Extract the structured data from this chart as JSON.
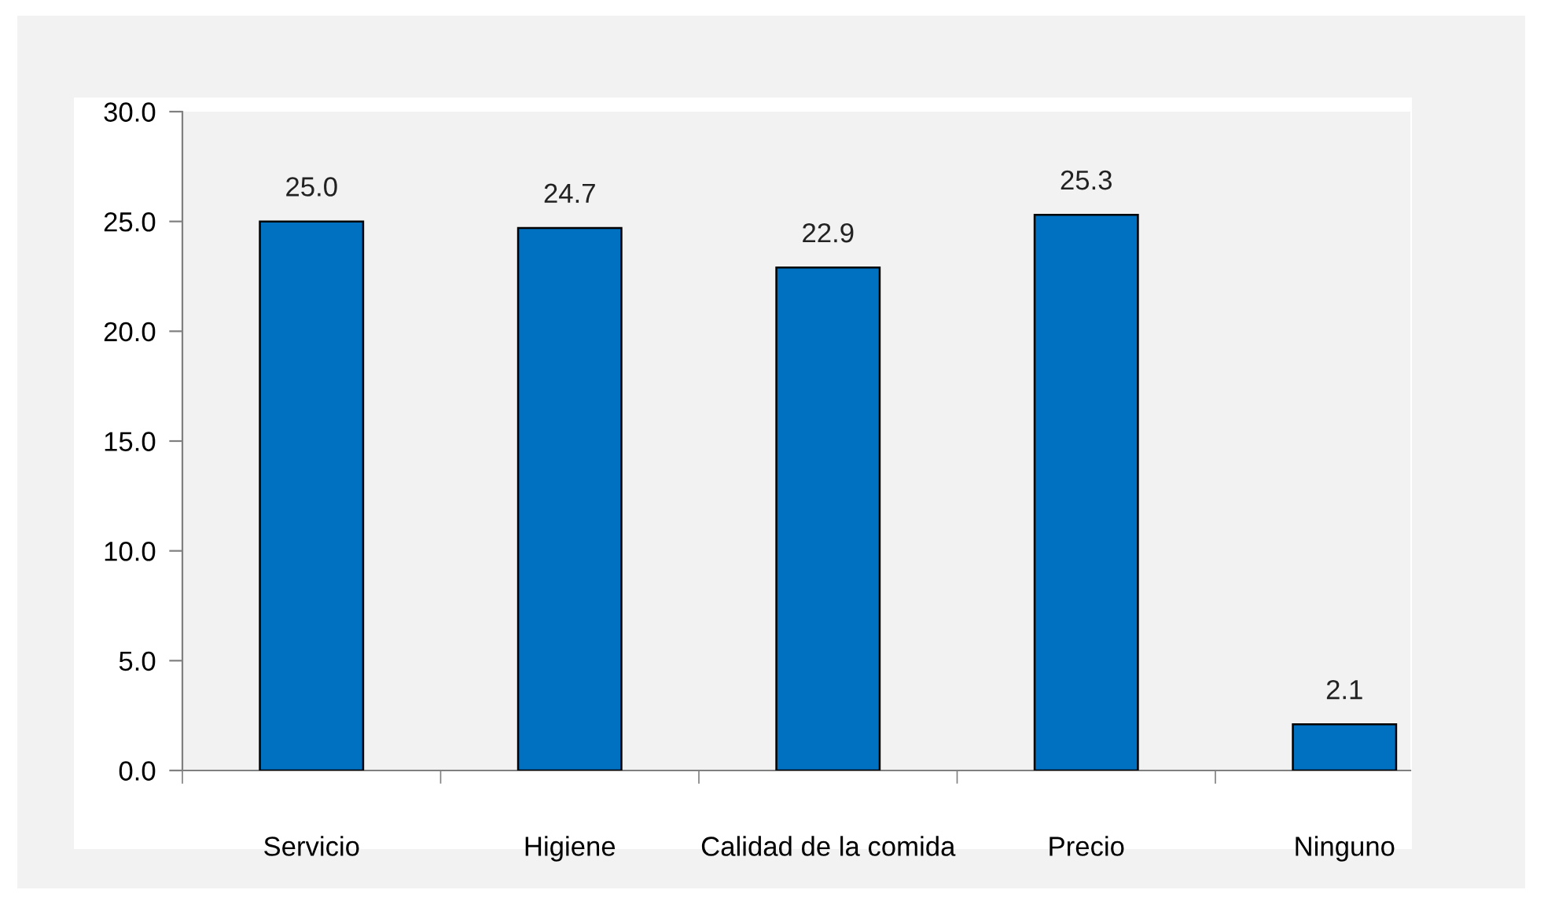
{
  "chart_data": {
    "type": "bar",
    "categories": [
      "Servicio",
      "Higiene",
      "Calidad de la comida",
      "Precio",
      "Ninguno"
    ],
    "values": [
      25.0,
      24.7,
      22.9,
      25.3,
      2.1
    ],
    "value_labels": [
      "25.0",
      "24.7",
      "22.9",
      "25.3",
      "2.1"
    ],
    "color": "#0070c0",
    "ylim": [
      0,
      30
    ],
    "yticks": [
      {
        "value": 0,
        "label": "0.0"
      },
      {
        "value": 5,
        "label": "5.0"
      },
      {
        "value": 10,
        "label": "10.0"
      },
      {
        "value": 15,
        "label": "15.0"
      },
      {
        "value": 20,
        "label": "20.0"
      },
      {
        "value": 25,
        "label": "25.0"
      },
      {
        "value": 30,
        "label": "30.0"
      }
    ],
    "grid": false,
    "legend": false
  }
}
